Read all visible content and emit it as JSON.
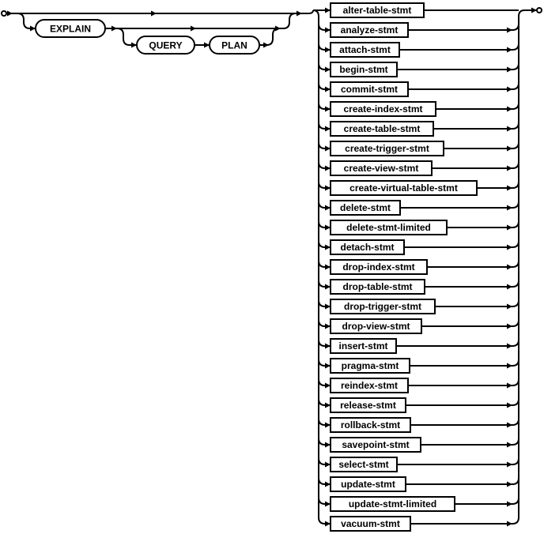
{
  "keywords": {
    "explain": "EXPLAIN",
    "query": "QUERY",
    "plan": "PLAN"
  },
  "statements": [
    "alter-table-stmt",
    "analyze-stmt",
    "attach-stmt",
    "begin-stmt",
    "commit-stmt",
    "create-index-stmt",
    "create-table-stmt",
    "create-trigger-stmt",
    "create-view-stmt",
    "create-virtual-table-stmt",
    "delete-stmt",
    "delete-stmt-limited",
    "detach-stmt",
    "drop-index-stmt",
    "drop-table-stmt",
    "drop-trigger-stmt",
    "drop-view-stmt",
    "insert-stmt",
    "pragma-stmt",
    "reindex-stmt",
    "release-stmt",
    "rollback-stmt",
    "savepoint-stmt",
    "select-stmt",
    "update-stmt",
    "update-stmt-limited",
    "vacuum-stmt"
  ]
}
